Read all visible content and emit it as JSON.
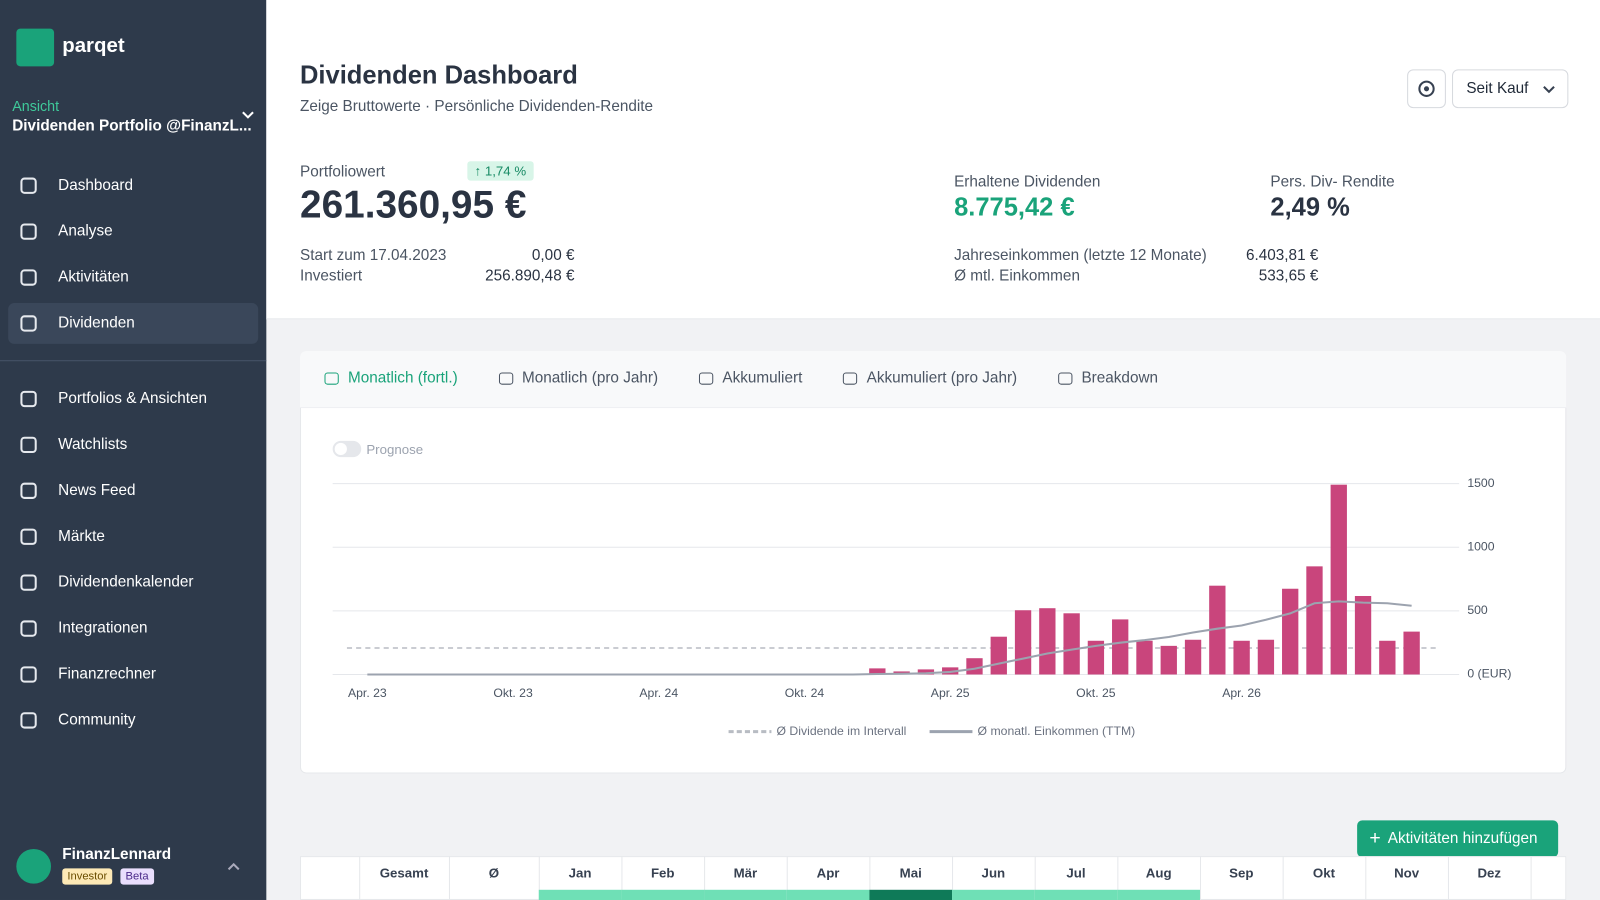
{
  "brand": "parqet",
  "sidebar": {
    "view_label": "Ansicht",
    "view_name": "Dividenden Portfolio @FinanzL...",
    "nav": [
      "Dashboard",
      "Analyse",
      "Aktivitäten",
      "Dividenden"
    ],
    "nav2": [
      "Portfolios & Ansichten",
      "Watchlists",
      "News Feed",
      "Märkte",
      "Dividendenkalender",
      "Integrationen",
      "Finanzrechner",
      "Community"
    ],
    "active": "Dividenden",
    "user": {
      "name": "FinanzLennard",
      "badges": [
        "Investor",
        "Beta"
      ]
    }
  },
  "header": {
    "title": "Dividenden Dashboard",
    "subtitle": "Zeige Bruttowerte · Persönliche Dividenden-Rendite",
    "period": "Seit Kauf"
  },
  "kpis": {
    "portfolio_label": "Portfoliowert",
    "portfolio_value": "261.360,95 €",
    "change": "1,74 %",
    "start_label": "Start zum 17.04.2023",
    "start_value": "0,00 €",
    "invested_label": "Investiert",
    "invested_value": "256.890,48 €",
    "received_label": "Erhaltene Dividenden",
    "received_value": "8.775,42 €",
    "yield_label": "Pers. Div- Rendite",
    "yield_value": "2,49 %",
    "annual_label": "Jahreseinkommen (letzte 12 Monate)",
    "annual_value": "6.403,81 €",
    "monthly_label": "Ø mtl. Einkommen",
    "monthly_value": "533,65 €"
  },
  "tabs": [
    "Monatlich (fortl.)",
    "Monatlich (pro Jahr)",
    "Akkumuliert",
    "Akkumuliert (pro Jahr)",
    "Breakdown"
  ],
  "active_tab": "Monatlich (fortl.)",
  "toggle_label": "Prognose",
  "chart_data": {
    "type": "bar",
    "color": "#c9457c",
    "categories": [
      "Apr. 23",
      null,
      null,
      null,
      null,
      null,
      "Okt. 23",
      null,
      null,
      null,
      null,
      null,
      "Apr. 24",
      null,
      null,
      null,
      null,
      null,
      "Okt. 24",
      null,
      null,
      null,
      null,
      null,
      "Apr. 25",
      null,
      null,
      null,
      null,
      null,
      "Okt. 25",
      null,
      null,
      null,
      null,
      null,
      "Apr. 26",
      null,
      null,
      null,
      null,
      null,
      null,
      null
    ],
    "values": [
      0,
      0,
      0,
      0,
      0,
      0,
      0,
      0,
      0,
      0,
      0,
      0,
      0,
      0,
      0,
      0,
      0,
      0,
      0,
      0,
      0,
      48,
      24,
      40,
      56,
      128,
      297,
      505,
      521,
      481,
      265,
      433,
      265,
      225,
      273,
      698,
      265,
      273,
      674,
      850,
      1492,
      617,
      265,
      337
    ],
    "reference_line": {
      "name": "Ø Dividende im Intervall",
      "color": "#b8bcc3",
      "value": 208
    },
    "line": {
      "name": "Ø monatl. Einkommen (TTM)",
      "color": "#9ca3af",
      "values": [
        0,
        0,
        0,
        0,
        0,
        0,
        0,
        0,
        0,
        0,
        0,
        0,
        0,
        0,
        0,
        0,
        0,
        0,
        0,
        0,
        0,
        4,
        6,
        10,
        20,
        45,
        85,
        125,
        165,
        195,
        225,
        250,
        270,
        295,
        330,
        360,
        385,
        430,
        480,
        560,
        575,
        565,
        560,
        540
      ]
    },
    "ylim": [
      0,
      1500
    ],
    "yticks": [
      {
        "value": 0,
        "label": "0 (EUR)"
      },
      500,
      1000,
      1500
    ],
    "grid": true
  },
  "button": "Aktivitäten hinzufügen",
  "table": {
    "headers": [
      "Gesamt",
      "Ø",
      "Jan",
      "Feb",
      "Mär",
      "Apr",
      "Mai",
      "Jun",
      "Jul",
      "Aug",
      "Sep",
      "Okt",
      "Nov",
      "Dez"
    ]
  }
}
